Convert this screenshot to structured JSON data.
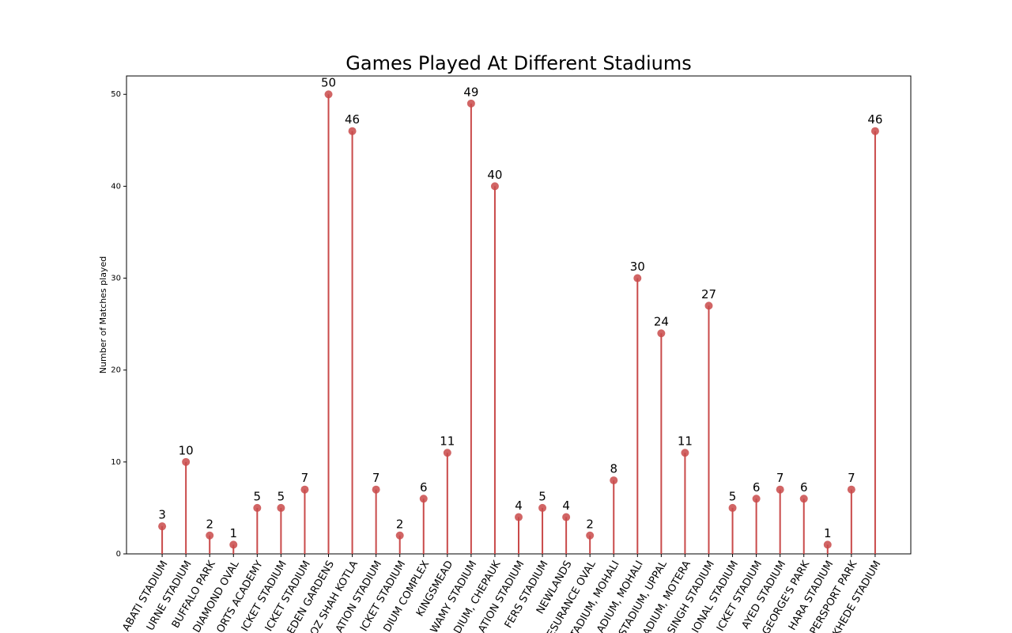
{
  "chart_data": {
    "type": "lollipop",
    "title": "Games Played At Different Stadiums",
    "y_label": "Number of Matches played",
    "categories": [
      "ABATI STADIUM",
      "URNE STADIUM",
      "BUFFALO PARK",
      "DIAMOND OVAL",
      "ORTS ACADEMY",
      "ICKET STADIUM",
      "ICKET STADIUM",
      "EDEN GARDENS",
      "OZ SHAH KOTLA",
      "ATION STADIUM",
      "ICKET STADIUM",
      "DIUM COMPLEX",
      "KINGSMEAD",
      "WAMY STADIUM",
      "DIUM, CHEPAUK",
      "ATION STADIUM",
      "FERS STADIUM",
      "NEWLANDS",
      "ESURANCE OVAL",
      "TADIUM, MOHALI",
      "ADIUM, MOHALI",
      "STADIUM, UPPAL",
      "ADIUM, MOTERA",
      "SINGH STADIUM",
      "IONAL STADIUM",
      "ICKET STADIUM",
      "AYED STADIUM",
      "GEORGE'S PARK",
      "HARA STADIUM",
      "PERSPORT PARK",
      "KHEDE STADIUM"
    ],
    "values": [
      3,
      10,
      2,
      1,
      5,
      5,
      7,
      50,
      46,
      7,
      2,
      6,
      11,
      49,
      40,
      4,
      5,
      4,
      2,
      8,
      30,
      24,
      11,
      27,
      5,
      6,
      7,
      6,
      1,
      7,
      46
    ],
    "color": "#c94a4a",
    "ylim": [
      0,
      52
    ],
    "yticks": [
      0,
      10,
      20,
      30,
      40,
      50
    ]
  }
}
